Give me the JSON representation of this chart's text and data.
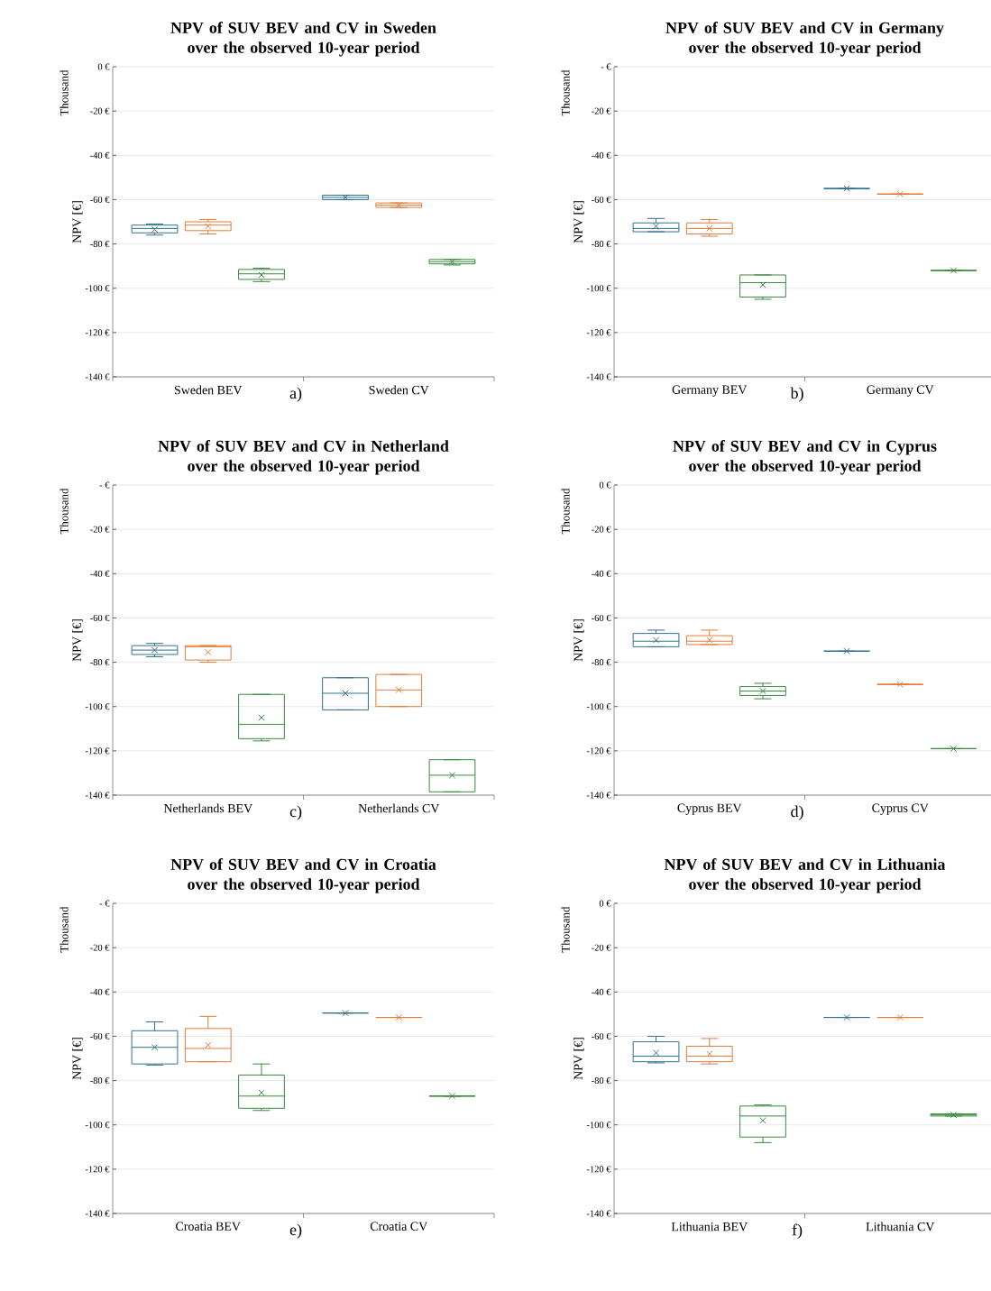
{
  "chart_data": [
    {
      "type": "box",
      "title": "NPV of SUV BEV and CV in Sweden  over the observed 10-year period",
      "ylabel": "NPV [€]",
      "annotations": [
        "a)",
        "Thousand"
      ],
      "categories": [
        "Sweden BEV",
        "Sweden CV"
      ],
      "ylim": [
        -140,
        0
      ],
      "yticks": [
        {
          "value": -140,
          "label": "-140 €"
        },
        {
          "value": -120,
          "label": "-120 €"
        },
        {
          "value": -100,
          "label": "-100 €"
        },
        {
          "value": -80,
          "label": "-80 €"
        },
        {
          "value": -60,
          "label": "-60 €"
        },
        {
          "value": -40,
          "label": "-40 €"
        },
        {
          "value": -20,
          "label": "-20 €"
        },
        {
          "value": 0,
          "label": "0 €"
        }
      ],
      "grid": "y",
      "series": [
        {
          "color": "#31708f",
          "boxes": [
            {
              "low": -76,
              "q1": -75,
              "median": -73,
              "q3": -71.5,
              "high": -71,
              "mean": -73.5
            },
            {
              "low": -60,
              "q1": -60,
              "median": -59,
              "q3": -58,
              "high": -58,
              "mean": -59
            }
          ]
        },
        {
          "color": "#e07b39",
          "boxes": [
            {
              "low": -75.5,
              "q1": -74,
              "median": -71.5,
              "q3": -70,
              "high": -69,
              "mean": -72
            },
            {
              "low": -63.5,
              "q1": -63.5,
              "median": -62.5,
              "q3": -61.5,
              "high": -61.5,
              "mean": -62.5
            }
          ]
        },
        {
          "color": "#3a8a3f",
          "boxes": [
            {
              "low": -97,
              "q1": -96,
              "median": -93.5,
              "q3": -91.5,
              "high": -91,
              "mean": -94
            },
            {
              "low": -89.5,
              "q1": -89,
              "median": -88,
              "q3": -87,
              "high": -87,
              "mean": -88
            }
          ]
        }
      ]
    },
    {
      "type": "box",
      "title": "NPV of SUV BEV and CV in Germany over the observed 10-year period",
      "ylabel": "NPV [€]",
      "annotations": [
        "b)",
        "Thousand"
      ],
      "categories": [
        "Germany BEV",
        "Germany CV"
      ],
      "ylim": [
        -140,
        0
      ],
      "yticks": [
        {
          "value": -140,
          "label": "-140 €"
        },
        {
          "value": -120,
          "label": "-120 €"
        },
        {
          "value": -100,
          "label": "-100 €"
        },
        {
          "value": -80,
          "label": "-80 €"
        },
        {
          "value": -60,
          "label": "-60 €"
        },
        {
          "value": -40,
          "label": "-40 €"
        },
        {
          "value": -20,
          "label": "-20 €"
        },
        {
          "value": 0,
          "label": "- €"
        }
      ],
      "grid": "y",
      "series": [
        {
          "color": "#31708f",
          "boxes": [
            {
              "low": -74.5,
              "q1": -74.5,
              "median": -73,
              "q3": -70.5,
              "high": -68.5,
              "mean": -72
            },
            {
              "low": -55,
              "q1": -55,
              "median": -55,
              "q3": -55,
              "high": -55,
              "mean": -55
            }
          ]
        },
        {
          "color": "#e07b39",
          "boxes": [
            {
              "low": -76.5,
              "q1": -75.5,
              "median": -73,
              "q3": -70.5,
              "high": -69,
              "mean": -73
            },
            {
              "low": -57.5,
              "q1": -57.5,
              "median": -57.5,
              "q3": -57.5,
              "high": -57.5,
              "mean": -57.5
            }
          ]
        },
        {
          "color": "#3a8a3f",
          "boxes": [
            {
              "low": -105,
              "q1": -104,
              "median": -97.5,
              "q3": -94,
              "high": -94,
              "mean": -98.5
            },
            {
              "low": -92,
              "q1": -92,
              "median": -92,
              "q3": -92,
              "high": -92,
              "mean": -92
            }
          ]
        }
      ]
    },
    {
      "type": "box",
      "title": "NPV of SUV BEV and CV in Netherland over the observed 10-year period",
      "ylabel": "NPV [€]",
      "annotations": [
        "c)",
        "Thousand"
      ],
      "categories": [
        "Netherlands BEV",
        "Netherlands CV"
      ],
      "ylim": [
        -140,
        0
      ],
      "yticks": [
        {
          "value": -140,
          "label": "-140 €"
        },
        {
          "value": -120,
          "label": "-120 €"
        },
        {
          "value": -100,
          "label": "-100 €"
        },
        {
          "value": -80,
          "label": "-80 €"
        },
        {
          "value": -60,
          "label": "-60 €"
        },
        {
          "value": -40,
          "label": "-40 €"
        },
        {
          "value": -20,
          "label": "-20 €"
        },
        {
          "value": 0,
          "label": "- €"
        }
      ],
      "grid": "y",
      "series": [
        {
          "color": "#31708f",
          "boxes": [
            {
              "low": -77.5,
              "q1": -76.5,
              "median": -74.5,
              "q3": -72.5,
              "high": -71.5,
              "mean": -74.5
            },
            {
              "low": -101.5,
              "q1": -101.5,
              "median": -94,
              "q3": -87,
              "high": -87,
              "mean": -94
            }
          ]
        },
        {
          "color": "#e07b39",
          "boxes": [
            {
              "low": -80,
              "q1": -79,
              "median": -73,
              "q3": -72.5,
              "high": -72.5,
              "mean": -75.5
            },
            {
              "low": -100,
              "q1": -100,
              "median": -92.5,
              "q3": -85.5,
              "high": -85.5,
              "mean": -92.5
            }
          ]
        },
        {
          "color": "#3a8a3f",
          "boxes": [
            {
              "low": -115.5,
              "q1": -114.5,
              "median": -108,
              "q3": -94.5,
              "high": -94.5,
              "mean": -105
            },
            {
              "low": -138.5,
              "q1": -138.5,
              "median": -131,
              "q3": -124,
              "high": -124,
              "mean": -131
            }
          ]
        }
      ]
    },
    {
      "type": "box",
      "title": "NPV of SUV BEV and CV in Cyprus  over the observed 10-year period",
      "ylabel": "NPV [€]",
      "annotations": [
        "d)",
        "Thousand"
      ],
      "categories": [
        "Cyprus BEV",
        "Cyprus CV"
      ],
      "ylim": [
        -140,
        0
      ],
      "yticks": [
        {
          "value": -140,
          "label": "-140 €"
        },
        {
          "value": -120,
          "label": "-120 €"
        },
        {
          "value": -100,
          "label": "-100 €"
        },
        {
          "value": -80,
          "label": "-80 €"
        },
        {
          "value": -60,
          "label": "-60 €"
        },
        {
          "value": -40,
          "label": "-40 €"
        },
        {
          "value": -20,
          "label": "-20 €"
        },
        {
          "value": 0,
          "label": "0 €"
        }
      ],
      "grid": "y",
      "series": [
        {
          "color": "#31708f",
          "boxes": [
            {
              "low": -73,
              "q1": -73,
              "median": -70.5,
              "q3": -67,
              "high": -65.5,
              "mean": -70
            },
            {
              "low": -75,
              "q1": -75,
              "median": -75,
              "q3": -75,
              "high": -75,
              "mean": -75
            }
          ]
        },
        {
          "color": "#e07b39",
          "boxes": [
            {
              "low": -72,
              "q1": -72,
              "median": -70.5,
              "q3": -68,
              "high": -65.5,
              "mean": -70
            },
            {
              "low": -90,
              "q1": -90,
              "median": -90,
              "q3": -90,
              "high": -90,
              "mean": -90
            }
          ]
        },
        {
          "color": "#3a8a3f",
          "boxes": [
            {
              "low": -96.5,
              "q1": -95,
              "median": -93,
              "q3": -91,
              "high": -89.5,
              "mean": -93
            },
            {
              "low": -119,
              "q1": -119,
              "median": -119,
              "q3": -119,
              "high": -119,
              "mean": -119
            }
          ]
        }
      ]
    },
    {
      "type": "box",
      "title": "NPV of SUV BEV and CV in Croatia  over the observed 10-year period",
      "ylabel": "NPV [€]",
      "annotations": [
        "e)",
        "Thousand"
      ],
      "categories": [
        "Croatia BEV",
        "Croatia CV"
      ],
      "ylim": [
        -140,
        0
      ],
      "yticks": [
        {
          "value": -140,
          "label": "-140 €"
        },
        {
          "value": -120,
          "label": "-120 €"
        },
        {
          "value": -100,
          "label": "-100 €"
        },
        {
          "value": -80,
          "label": "-80 €"
        },
        {
          "value": -60,
          "label": "-60 €"
        },
        {
          "value": -40,
          "label": "-40 €"
        },
        {
          "value": -20,
          "label": "-20 €"
        },
        {
          "value": 0,
          "label": "- €"
        }
      ],
      "grid": "y",
      "series": [
        {
          "color": "#31708f",
          "boxes": [
            {
              "low": -73,
              "q1": -72.5,
              "median": -65,
              "q3": -57.5,
              "high": -53.5,
              "mean": -65
            },
            {
              "low": -49.5,
              "q1": -49.5,
              "median": -49.5,
              "q3": -49.5,
              "high": -49.5,
              "mean": -49.5
            }
          ]
        },
        {
          "color": "#e07b39",
          "boxes": [
            {
              "low": -71.5,
              "q1": -71.5,
              "median": -65.5,
              "q3": -56.5,
              "high": -51,
              "mean": -64
            },
            {
              "low": -51.5,
              "q1": -51.5,
              "median": -51.5,
              "q3": -51.5,
              "high": -51.5,
              "mean": -51.5
            }
          ]
        },
        {
          "color": "#3a8a3f",
          "boxes": [
            {
              "low": -93.5,
              "q1": -92.5,
              "median": -87,
              "q3": -77.5,
              "high": -72.5,
              "mean": -85.5
            },
            {
              "low": -87,
              "q1": -87,
              "median": -87,
              "q3": -87,
              "high": -87,
              "mean": -87
            }
          ]
        }
      ]
    },
    {
      "type": "box",
      "title": "NPV of SUV BEV and CV in Lithuania over the observed 10-year period",
      "ylabel": "NPV [€]",
      "annotations": [
        "f)",
        "Thousand"
      ],
      "categories": [
        "Lithuania BEV",
        "Lithuania CV"
      ],
      "ylim": [
        -140,
        0
      ],
      "yticks": [
        {
          "value": -140,
          "label": "-140 €"
        },
        {
          "value": -120,
          "label": "-120 €"
        },
        {
          "value": -100,
          "label": "-100 €"
        },
        {
          "value": -80,
          "label": "-80 €"
        },
        {
          "value": -60,
          "label": "-60 €"
        },
        {
          "value": -40,
          "label": "-40 €"
        },
        {
          "value": -20,
          "label": "-20 €"
        },
        {
          "value": 0,
          "label": "0 €"
        }
      ],
      "grid": "y",
      "series": [
        {
          "color": "#31708f",
          "boxes": [
            {
              "low": -72,
              "q1": -71.5,
              "median": -69,
              "q3": -62.5,
              "high": -60,
              "mean": -67.5
            },
            {
              "low": -51.5,
              "q1": -51.5,
              "median": -51.5,
              "q3": -51.5,
              "high": -51.5,
              "mean": -51.5
            }
          ]
        },
        {
          "color": "#e07b39",
          "boxes": [
            {
              "low": -72.5,
              "q1": -71.5,
              "median": -69,
              "q3": -64.5,
              "high": -61,
              "mean": -68
            },
            {
              "low": -51.5,
              "q1": -51.5,
              "median": -51.5,
              "q3": -51.5,
              "high": -51.5,
              "mean": -51.5
            }
          ]
        },
        {
          "color": "#3a8a3f",
          "boxes": [
            {
              "low": -108,
              "q1": -105.5,
              "median": -96,
              "q3": -91.5,
              "high": -91,
              "mean": -98
            },
            {
              "low": -96,
              "q1": -96,
              "median": -95.5,
              "q3": -95,
              "high": -95,
              "mean": -95.5
            }
          ]
        }
      ]
    }
  ]
}
